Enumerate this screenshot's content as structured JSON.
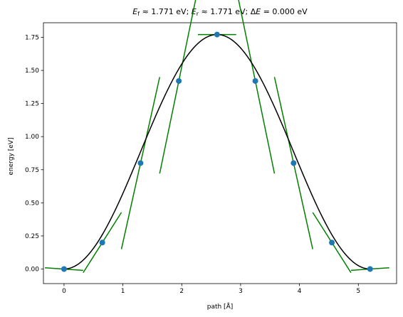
{
  "chart_data": {
    "type": "line",
    "title": "E_f ≈ 1.771 eV; E_r ≈ 1.771 eV; ΔE = 0.000 eV",
    "title_parts": {
      "ef_symbol": "E",
      "ef_sub": "f",
      "ef_rest": " ≈  1.771 eV; ",
      "er_symbol": "E",
      "er_sub": "r",
      "er_rest": " ≈  1.771 eV; Δ",
      "de_symbol": "E",
      "de_rest": " = 0.000 eV"
    },
    "xlabel": "path [Å]",
    "ylabel": "energy [eV]",
    "xlim": [
      -0.35,
      5.65
    ],
    "ylim": [
      -0.11,
      1.86
    ],
    "xticks": [
      0,
      1,
      2,
      3,
      4,
      5
    ],
    "xtick_labels": [
      "0",
      "1",
      "2",
      "3",
      "4",
      "5"
    ],
    "yticks": [
      0.0,
      0.25,
      0.5,
      0.75,
      1.0,
      1.25,
      1.5,
      1.75
    ],
    "ytick_labels": [
      "0.00",
      "0.25",
      "0.50",
      "0.75",
      "1.00",
      "1.25",
      "1.50",
      "1.75"
    ],
    "grid": false,
    "colors": {
      "points": "#1f77b4",
      "curve": "#000000",
      "tangents": "#008000"
    },
    "images": {
      "x": [
        0.0,
        0.65,
        1.3,
        1.95,
        2.6,
        3.25,
        3.9,
        4.55,
        5.2
      ],
      "y": [
        0.0,
        0.2,
        0.8,
        1.42,
        1.771,
        1.42,
        0.8,
        0.2,
        0.0
      ],
      "tangent_half_width": 0.325,
      "tangent_slopes": [
        -0.03,
        0.7,
        2.0,
        2.15,
        0.0,
        -2.15,
        -2.0,
        -0.7,
        0.03
      ]
    },
    "curve": {
      "x0": 0.0,
      "x1": 5.2,
      "ymax": 1.771,
      "form": "raised-cosine"
    }
  }
}
